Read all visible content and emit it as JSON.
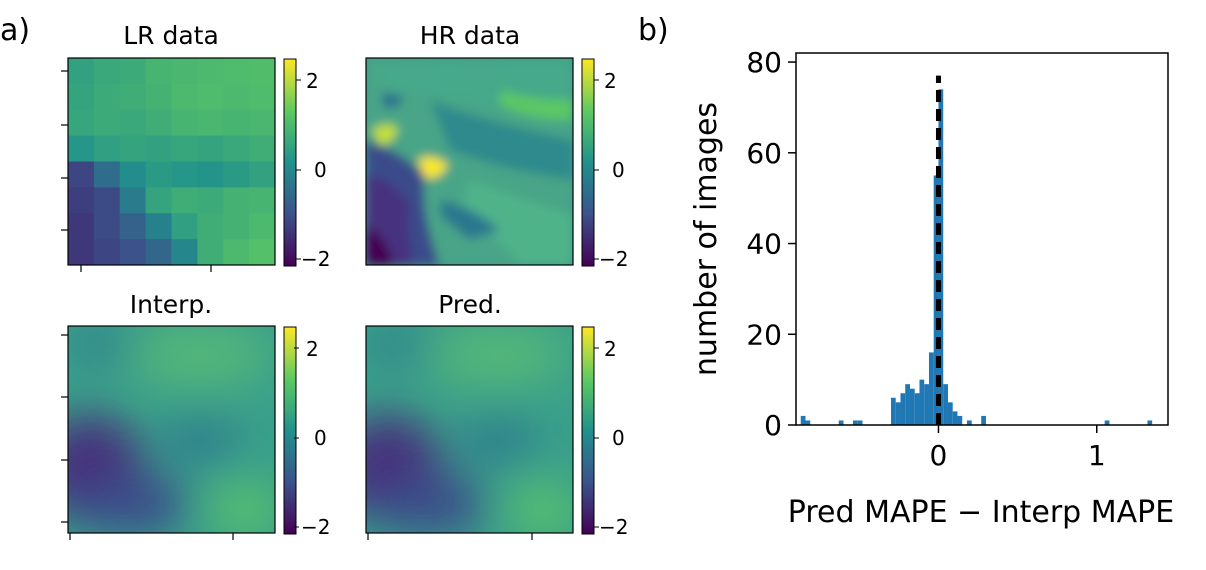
{
  "panel_labels": {
    "a": "a)",
    "b": "b)"
  },
  "colormap": [
    "#440154",
    "#3b528b",
    "#21918c",
    "#5ec962",
    "#fde725"
  ],
  "chart_data": [
    {
      "type": "heatmap",
      "title": "LR data",
      "colorbar_ticks": [
        "2",
        "0",
        "−2"
      ],
      "colorbar_range": [
        -2.4,
        2.4
      ],
      "grid": [
        [
          0.35,
          0.5,
          0.55,
          0.75,
          0.8,
          0.85,
          0.9,
          0.95
        ],
        [
          0.4,
          0.55,
          0.6,
          0.7,
          0.85,
          0.9,
          0.85,
          0.9
        ],
        [
          0.45,
          0.55,
          0.5,
          0.6,
          0.75,
          0.8,
          0.75,
          0.8
        ],
        [
          0.1,
          0.3,
          0.4,
          0.35,
          0.45,
          0.4,
          0.5,
          0.6
        ],
        [
          -1.4,
          -0.7,
          -0.1,
          0.2,
          0.1,
          0.05,
          0.2,
          0.35
        ],
        [
          -1.5,
          -1.3,
          -0.4,
          0.4,
          0.6,
          0.55,
          0.7,
          0.75
        ],
        [
          -1.6,
          -1.3,
          -0.9,
          -0.3,
          0.3,
          0.6,
          0.7,
          0.85
        ],
        [
          -1.6,
          -1.4,
          -1.2,
          -0.8,
          -0.2,
          0.6,
          0.85,
          1.0
        ]
      ]
    },
    {
      "type": "heatmap",
      "title": "HR data",
      "colorbar_ticks": [
        "2",
        "0",
        "−2"
      ],
      "colorbar_range": [
        -2.4,
        2.4
      ]
    },
    {
      "type": "heatmap",
      "title": "Interp.",
      "colorbar_ticks": [
        "2",
        "0",
        "−2"
      ],
      "colorbar_range": [
        -2.4,
        2.4
      ]
    },
    {
      "type": "heatmap",
      "title": "Pred.",
      "colorbar_ticks": [
        "2",
        "0",
        "−2"
      ],
      "colorbar_range": [
        -2.4,
        2.4
      ]
    },
    {
      "type": "bar",
      "subtype": "histogram",
      "xlabel": "Pred MAPE − Interp MAPE",
      "ylabel": "number of images",
      "xlim": [
        -0.9,
        1.45
      ],
      "ylim": [
        0,
        82
      ],
      "xticks": [
        0,
        1
      ],
      "yticks": [
        0,
        20,
        40,
        60,
        80
      ],
      "bin_width": 0.03,
      "bins": [
        {
          "x": -0.87,
          "count": 2
        },
        {
          "x": -0.84,
          "count": 1
        },
        {
          "x": -0.63,
          "count": 1
        },
        {
          "x": -0.54,
          "count": 1
        },
        {
          "x": -0.51,
          "count": 1
        },
        {
          "x": -0.3,
          "count": 6
        },
        {
          "x": -0.27,
          "count": 5
        },
        {
          "x": -0.24,
          "count": 7
        },
        {
          "x": -0.21,
          "count": 9
        },
        {
          "x": -0.18,
          "count": 8
        },
        {
          "x": -0.15,
          "count": 7
        },
        {
          "x": -0.12,
          "count": 10
        },
        {
          "x": -0.09,
          "count": 9
        },
        {
          "x": -0.06,
          "count": 16
        },
        {
          "x": -0.03,
          "count": 55
        },
        {
          "x": 0.0,
          "count": 74
        },
        {
          "x": 0.03,
          "count": 9
        },
        {
          "x": 0.06,
          "count": 5
        },
        {
          "x": 0.09,
          "count": 3
        },
        {
          "x": 0.12,
          "count": 2
        },
        {
          "x": 0.18,
          "count": 1
        },
        {
          "x": 0.27,
          "count": 2
        },
        {
          "x": 1.05,
          "count": 1
        },
        {
          "x": 1.32,
          "count": 1
        }
      ],
      "bar_color": "#1f77b4",
      "reference_line": {
        "x": 0,
        "style": "dashed",
        "color": "#000000"
      }
    }
  ]
}
